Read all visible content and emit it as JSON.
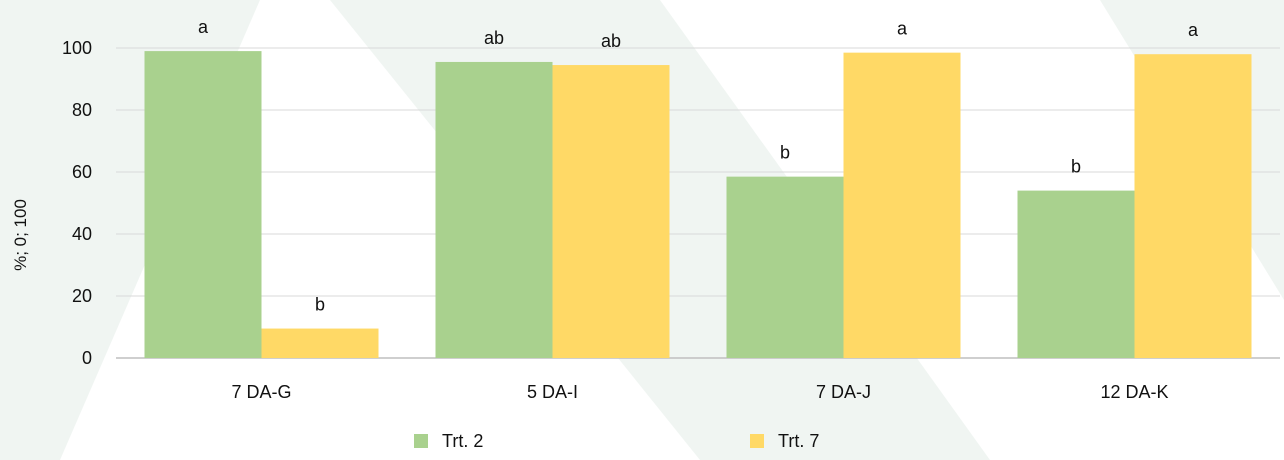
{
  "chart_data": {
    "type": "bar",
    "title": "",
    "xlabel": "",
    "ylabel": "%; 0; 100",
    "ylim": [
      0,
      100
    ],
    "yticks": [
      0,
      20,
      40,
      60,
      80,
      100
    ],
    "grid": true,
    "legend_position": "bottom",
    "categories": [
      "7 DA-G",
      "5 DA-I",
      "7 DA-J",
      "12 DA-K"
    ],
    "series": [
      {
        "name": "Trt. 2",
        "color": "#a9d18e",
        "values": [
          99,
          95.5,
          58.5,
          54
        ],
        "annotations": [
          "a",
          "ab",
          "b",
          "b"
        ]
      },
      {
        "name": "Trt. 7",
        "color": "#ffd966",
        "values": [
          9.5,
          94.5,
          98.5,
          98
        ],
        "annotations": [
          "b",
          "ab",
          "a",
          "a"
        ]
      }
    ]
  },
  "colors": {
    "background_watermark": "#e3ece8",
    "gridline": "#d9d9d9",
    "axis": "#bfbfbf"
  }
}
